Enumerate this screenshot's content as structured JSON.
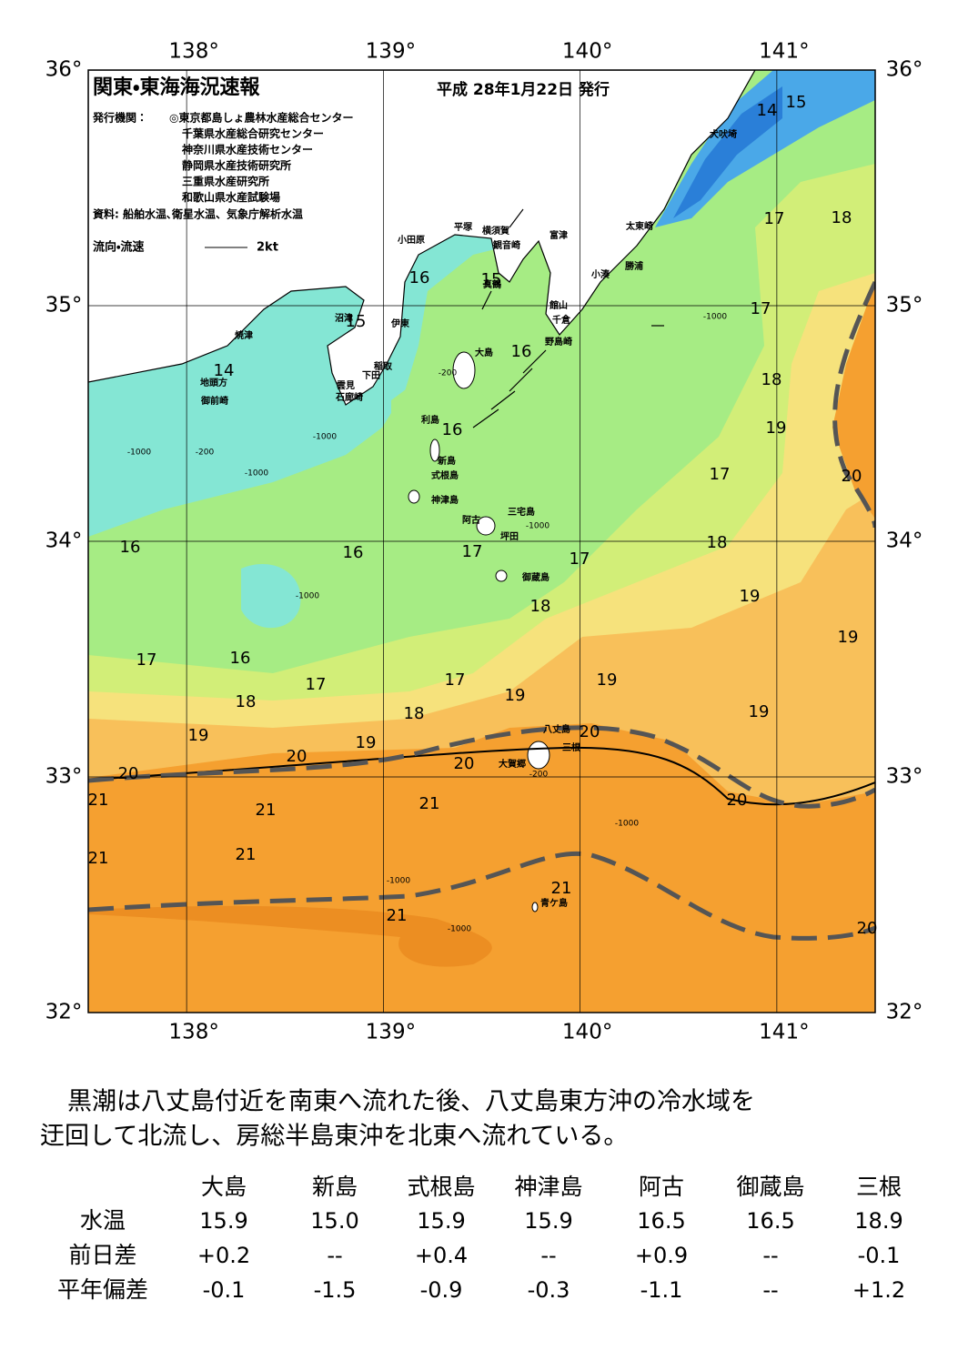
{
  "header": {
    "title": "関東・東海海況速報",
    "date": "平成 28年1月22日 発行",
    "issuer_label": "発行機関：",
    "issuers": [
      "◎東京都島しょ農林水産総合センター",
      "千葉県水産総合研究センター",
      "神奈川県水産技術センター",
      "静岡県水産技術研究所",
      "三重県水産研究所",
      "和歌山県水産試験場"
    ],
    "source": "資料: 船舶水温､衛星水温、気象庁解析水温",
    "legend": "流向・流速",
    "legend_speed": "2kt"
  },
  "map": {
    "lon_ticks": [
      {
        "value": 138,
        "label": "138°"
      },
      {
        "value": 139,
        "label": "139°"
      },
      {
        "value": 140,
        "label": "140°"
      },
      {
        "value": 141,
        "label": "141°"
      }
    ],
    "lat_ticks": [
      {
        "value": 36,
        "label": "36°"
      },
      {
        "value": 35,
        "label": "35°"
      },
      {
        "value": 34,
        "label": "34°"
      },
      {
        "value": 33,
        "label": "33°"
      },
      {
        "value": 32,
        "label": "32°"
      }
    ],
    "place_labels": [
      "犬吠埼",
      "平塚",
      "横須賀",
      "富津",
      "観音崎",
      "太東崎",
      "小田原",
      "小湊",
      "勝浦",
      "真鶴",
      "館山",
      "千倉",
      "沼津",
      "伊東",
      "野島崎",
      "焼津",
      "大島",
      "稲取",
      "下田",
      "雲見",
      "石廊崎",
      "地頭方",
      "御前崎",
      "利島",
      "新島",
      "式根島",
      "神津島",
      "三宅島",
      "阿古",
      "坪田",
      "御蔵島",
      "八丈島",
      "三根",
      "大賀郷",
      "青ケ島"
    ],
    "isotherm_labels": [
      14,
      15,
      17,
      18,
      16,
      15,
      15,
      17,
      16,
      14,
      18,
      19,
      16,
      17,
      20,
      16,
      16,
      17,
      17,
      18,
      18,
      19,
      19,
      17,
      16,
      17,
      17,
      19,
      18,
      19,
      18,
      19,
      19,
      19,
      20,
      20,
      20,
      20,
      21,
      21,
      21,
      20,
      21,
      21,
      21,
      21,
      20
    ],
    "depth_labels": [
      "-1000",
      "-200",
      "-1000",
      "-200",
      "-1000",
      "-1000",
      "-1000",
      "-1000",
      "-200",
      "-1000",
      "-1000",
      "-1000"
    ]
  },
  "description": [
    "黒潮は八丈島付近を南東へ流れた後、八丈島東方沖の冷水域を",
    "迂回して北流し、房総半島東沖を北東へ流れている。"
  ],
  "table": {
    "columns": [
      "大島",
      "新島",
      "式根島",
      "神津島",
      "阿古",
      "御蔵島",
      "三根"
    ],
    "rows": [
      {
        "label": "水温",
        "values": [
          "15.9",
          "15.0",
          "15.9",
          "15.9",
          "16.5",
          "16.5",
          "18.9"
        ]
      },
      {
        "label": "前日差",
        "values": [
          "+0.2",
          "--",
          "+0.4",
          "--",
          "+0.9",
          "--",
          "-0.1"
        ]
      },
      {
        "label": "平年偏差",
        "values": [
          "-0.1",
          "-1.5",
          "-0.9",
          "-0.3",
          "-1.1",
          "--",
          "+1.2"
        ]
      }
    ]
  }
}
